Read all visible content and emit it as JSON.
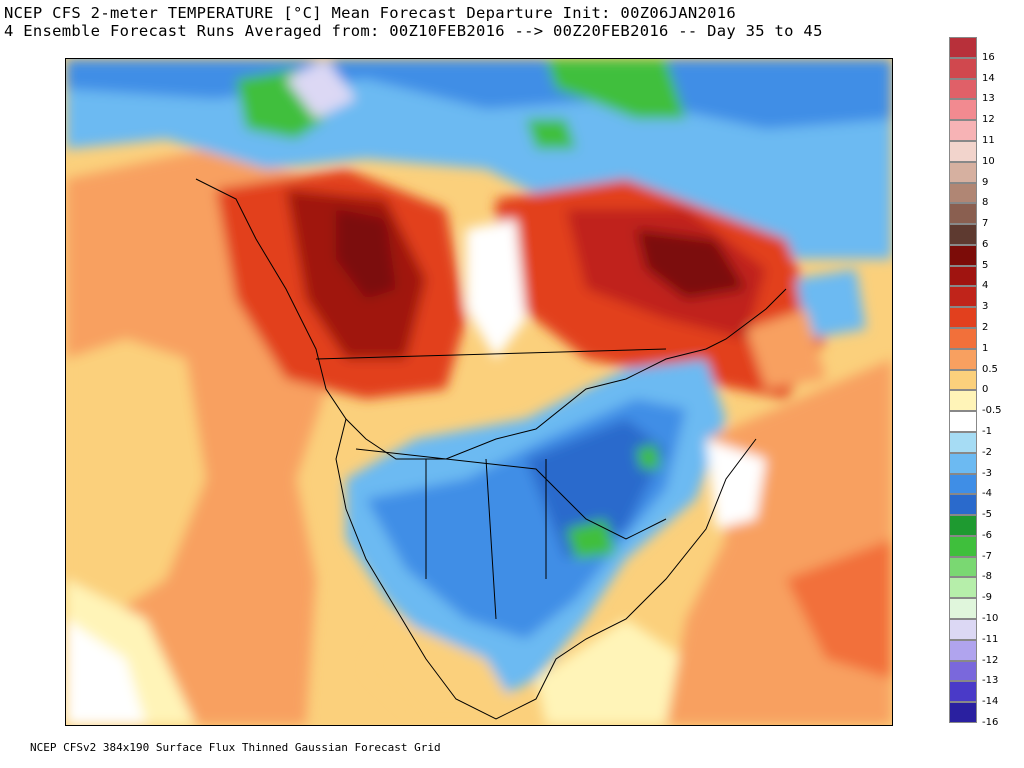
{
  "header": {
    "title_line1": "NCEP CFS 2-meter TEMPERATURE [°C] Mean Forecast Departure Init: 00Z06JAN2016",
    "title_line2": "4 Ensemble Forecast Runs Averaged from: 00Z10FEB2016 --> 00Z20FEB2016 -- Day 35 to 45"
  },
  "footer": {
    "text": "NCEP CFSv2 384x190 Surface Flux Thinned Gaussian Forecast Grid"
  },
  "legend": {
    "entries": [
      {
        "label": "16",
        "color": "#b8303a"
      },
      {
        "label": "14",
        "color": "#d0484e"
      },
      {
        "label": "13",
        "color": "#e06068"
      },
      {
        "label": "12",
        "color": "#f28a90"
      },
      {
        "label": "11",
        "color": "#f7b3b5"
      },
      {
        "label": "10",
        "color": "#f2d4cc"
      },
      {
        "label": "9",
        "color": "#d6b0a0"
      },
      {
        "label": "8",
        "color": "#b08674"
      },
      {
        "label": "7",
        "color": "#8a5f50"
      },
      {
        "label": "6",
        "color": "#5e3a30"
      },
      {
        "label": "5",
        "color": "#7c0c08"
      },
      {
        "label": "4",
        "color": "#a01410"
      },
      {
        "label": "3",
        "color": "#c0241a"
      },
      {
        "label": "2",
        "color": "#e2401e"
      },
      {
        "label": "1",
        "color": "#f2703a"
      },
      {
        "label": "0.5",
        "color": "#f8a060"
      },
      {
        "label": "0",
        "color": "#fbd07c"
      },
      {
        "label": "-0.5",
        "color": "#fff4b8"
      },
      {
        "label": "-1",
        "color": "#ffffff"
      },
      {
        "label": "-2",
        "color": "#a6dcf4"
      },
      {
        "label": "-3",
        "color": "#6cbaf2"
      },
      {
        "label": "-4",
        "color": "#3f8ee6"
      },
      {
        "label": "-5",
        "color": "#2a6acc"
      },
      {
        "label": "-6",
        "color": "#1e9a30"
      },
      {
        "label": "-7",
        "color": "#3fbf3c"
      },
      {
        "label": "-8",
        "color": "#7ad872"
      },
      {
        "label": "-9",
        "color": "#b6eeaa"
      },
      {
        "label": "-10",
        "color": "#e0f6dc"
      },
      {
        "label": "-11",
        "color": "#dcd8f4"
      },
      {
        "label": "-12",
        "color": "#b0a4ee"
      },
      {
        "label": "-13",
        "color": "#7a68dc"
      },
      {
        "label": "-14",
        "color": "#4a3ac8"
      },
      {
        "label": "-16",
        "color": "#2a20a0"
      }
    ],
    "extra_colors": [
      "#5a0a6a",
      "#82148c",
      "#a81cb0",
      "#d02ed6",
      "#ee6cee",
      "#f6a8f4"
    ]
  },
  "map": {
    "region": "North America"
  }
}
